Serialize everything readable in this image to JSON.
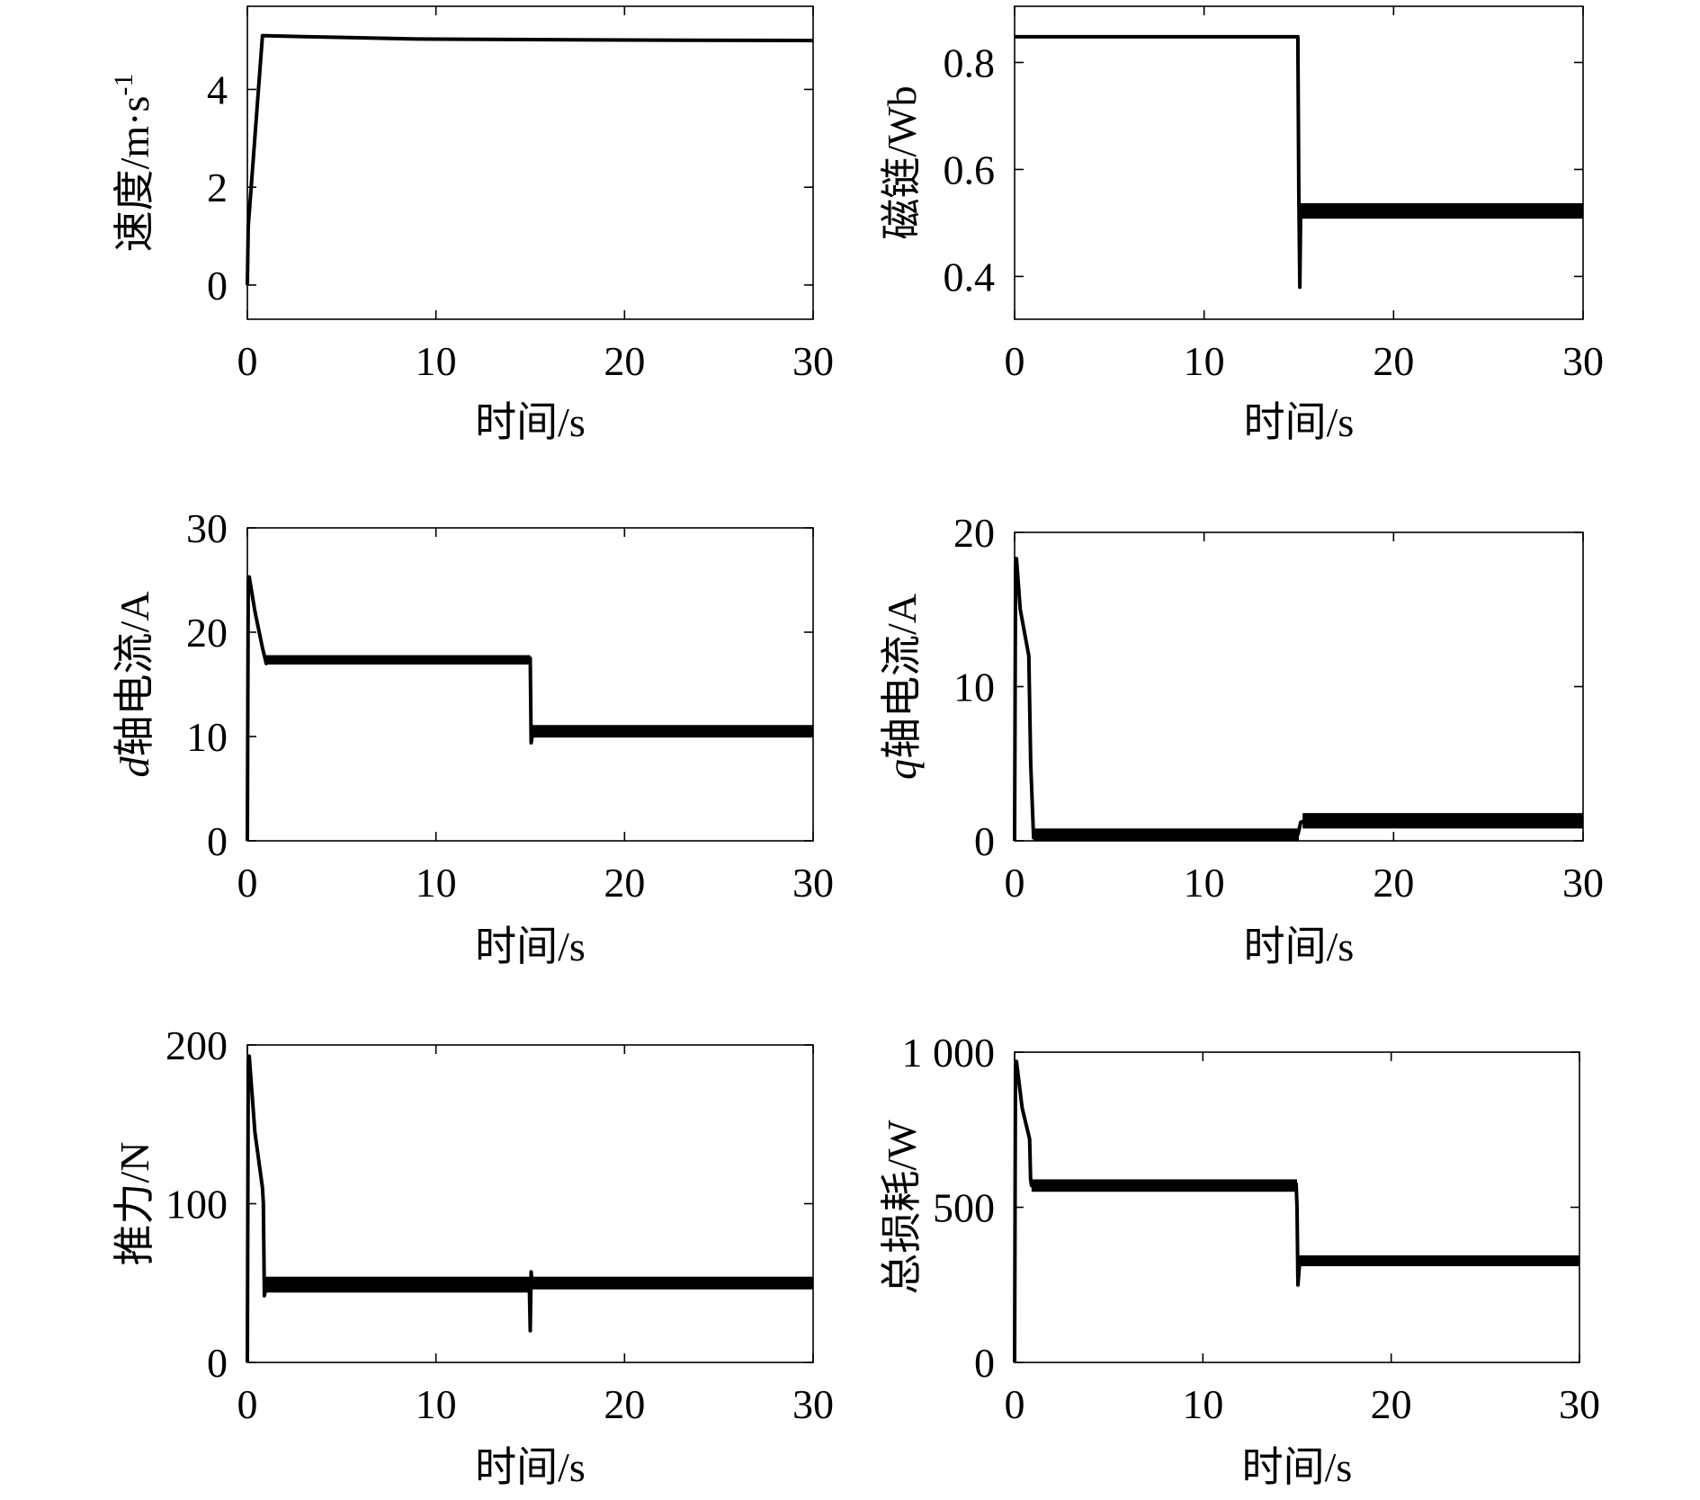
{
  "chart_data": [
    {
      "type": "line",
      "xlabel": "时间/s",
      "ylabel": {
        "prefix": "",
        "text": "速度/m·s",
        "sup": "-1"
      },
      "xlim": [
        0,
        30
      ],
      "ylim": [
        -0.7,
        5.7
      ],
      "xticks": [
        0,
        10,
        20,
        30
      ],
      "yticks": [
        0,
        2,
        4
      ],
      "ytick_labels": [
        "0",
        "2",
        "4"
      ],
      "series": [
        {
          "x": [
            0,
            0.05,
            0.8,
            3,
            9,
            15,
            20,
            30
          ],
          "y": [
            0,
            1.2,
            5.1,
            5.08,
            5.03,
            5.02,
            5.01,
            5.0
          ]
        }
      ],
      "bands": []
    },
    {
      "type": "line",
      "xlabel": "时间/s",
      "ylabel": {
        "prefix": "",
        "text": "磁链/Wb",
        "sup": ""
      },
      "xlim": [
        0,
        30
      ],
      "ylim": [
        0.32,
        0.905
      ],
      "xticks": [
        0,
        10,
        20,
        30
      ],
      "yticks": [
        0.4,
        0.6,
        0.8
      ],
      "ytick_labels": [
        "0.4",
        "0.6",
        "0.8"
      ],
      "series": [
        {
          "x": [
            0,
            14.95,
            15.0,
            15.05,
            15.1,
            15.2
          ],
          "y": [
            0.848,
            0.848,
            0.55,
            0.38,
            0.53,
            0.525
          ]
        }
      ],
      "bands": [
        {
          "x_start": 15.1,
          "x_end": 30,
          "y_low": 0.508,
          "y_high": 0.537
        }
      ]
    },
    {
      "type": "line",
      "xlabel": "时间/s",
      "ylabel": {
        "prefix": "d",
        "text": "轴电流/A",
        "sup": ""
      },
      "xlim": [
        0,
        30
      ],
      "ylim": [
        0,
        30
      ],
      "xticks": [
        0,
        10,
        20,
        30
      ],
      "yticks": [
        0,
        10,
        20,
        30
      ],
      "ytick_labels": [
        "0",
        "10",
        "20",
        "30"
      ],
      "series": [
        {
          "x": [
            0,
            0.05,
            0.1,
            0.4,
            0.8,
            1.0,
            1.2,
            14.95,
            15.0,
            15.05,
            15.15
          ],
          "y": [
            0,
            25,
            25.3,
            22,
            18.5,
            17,
            17.3,
            17.3,
            17.5,
            9.4,
            10.5
          ]
        }
      ],
      "bands": [
        {
          "x_start": 1.0,
          "x_end": 15.0,
          "y_low": 16.9,
          "y_high": 17.8
        },
        {
          "x_start": 15.05,
          "x_end": 30,
          "y_low": 9.9,
          "y_high": 11.1
        }
      ]
    },
    {
      "type": "line",
      "xlabel": "时间/s",
      "ylabel": {
        "prefix": "q",
        "text": "轴电流/A",
        "sup": ""
      },
      "xlim": [
        0,
        30
      ],
      "ylim": [
        0,
        20
      ],
      "xticks": [
        0,
        10,
        20,
        30
      ],
      "yticks": [
        0,
        10,
        20
      ],
      "ytick_labels": [
        "0",
        "10",
        "20"
      ],
      "series": [
        {
          "x": [
            0,
            0.05,
            0.1,
            0.3,
            0.6,
            0.75,
            0.85,
            1.0,
            1.2,
            14.95,
            15.1,
            15.3
          ],
          "y": [
            0,
            18,
            18.3,
            15,
            13,
            12,
            5,
            0.2,
            0.4,
            0.4,
            1.2,
            1.3
          ]
        }
      ],
      "bands": [
        {
          "x_start": 1.0,
          "x_end": 15.0,
          "y_low": 0,
          "y_high": 0.8
        },
        {
          "x_start": 15.2,
          "x_end": 30,
          "y_low": 0.8,
          "y_high": 1.8
        }
      ]
    },
    {
      "type": "line",
      "xlabel": "时间/s",
      "ylabel": {
        "prefix": "",
        "text": "推力/N",
        "sup": ""
      },
      "xlim": [
        0,
        30
      ],
      "ylim": [
        0,
        200
      ],
      "xticks": [
        0,
        10,
        20,
        30
      ],
      "yticks": [
        0,
        100,
        200
      ],
      "ytick_labels": [
        "0",
        "100",
        "200"
      ],
      "series": [
        {
          "x": [
            0,
            0.05,
            0.1,
            0.4,
            0.8,
            0.85,
            0.9,
            1.0,
            14.95,
            15.0,
            15.05,
            15.1
          ],
          "y": [
            0,
            190,
            193,
            145,
            110,
            100,
            42,
            48,
            48,
            20,
            57,
            50
          ]
        }
      ],
      "bands": [
        {
          "x_start": 0.9,
          "x_end": 15.0,
          "y_low": 44,
          "y_high": 54
        },
        {
          "x_start": 15.05,
          "x_end": 30,
          "y_low": 46,
          "y_high": 54
        }
      ]
    },
    {
      "type": "line",
      "xlabel": "时间/s",
      "ylabel": {
        "prefix": "",
        "text": "总损耗/W",
        "sup": ""
      },
      "xlim": [
        0,
        30
      ],
      "ylim": [
        0,
        1000
      ],
      "xticks": [
        0,
        10,
        20,
        30
      ],
      "yticks": [
        0,
        500,
        1000
      ],
      "ytick_labels": [
        "0",
        "500",
        "1 000"
      ],
      "series": [
        {
          "x": [
            0,
            0.05,
            0.1,
            0.4,
            0.8,
            0.85,
            0.9,
            1.0,
            14.95,
            15.0,
            15.05,
            15.15
          ],
          "y": [
            0,
            960,
            970,
            820,
            720,
            590,
            570,
            575,
            575,
            500,
            250,
            330
          ]
        }
      ],
      "bands": [
        {
          "x_start": 0.9,
          "x_end": 15.0,
          "y_low": 550,
          "y_high": 590
        },
        {
          "x_start": 15.05,
          "x_end": 30,
          "y_low": 310,
          "y_high": 345
        }
      ]
    }
  ]
}
